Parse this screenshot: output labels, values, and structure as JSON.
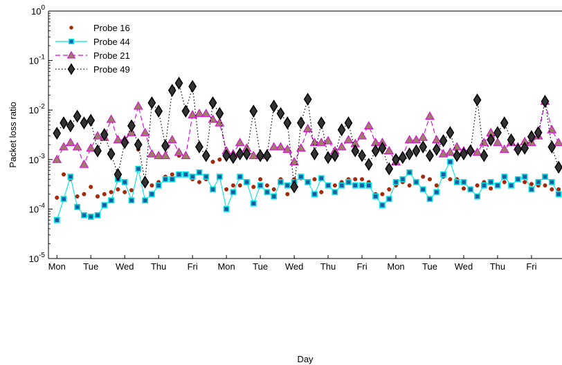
{
  "chart_data": {
    "type": "line",
    "title": "",
    "xlabel": "Day",
    "ylabel": "Packet loss ratio",
    "yscale": "log",
    "ylim": [
      1e-05,
      1
    ],
    "y_tick_labels": [
      "10^-5",
      "10^-4",
      "10^-3",
      "10^-2",
      "10^-1",
      "10^0"
    ],
    "xlim": [
      -0.25,
      14.9
    ],
    "x_tick_labels": [
      "Mon",
      "Tue",
      "Wed",
      "Thu",
      "Fri",
      "Mon",
      "Tue",
      "Wed",
      "Thu",
      "Fri",
      "Mon",
      "Tue",
      "Wed",
      "Thu",
      "Fri"
    ],
    "x_tick_positions": [
      0,
      1,
      2,
      3,
      4,
      5,
      6,
      7,
      8,
      9,
      10,
      11,
      12,
      13,
      14
    ],
    "grid": false,
    "legend_position": "top-left",
    "series": [
      {
        "name": "Probe 16",
        "color": "#a52a0a",
        "line_style": "none",
        "marker": "circle",
        "x": [
          0.0,
          0.2,
          0.4,
          0.6,
          0.8,
          1.0,
          1.2,
          1.4,
          1.6,
          1.8,
          2.0,
          2.2,
          2.4,
          2.6,
          2.8,
          3.0,
          3.2,
          3.4,
          3.6,
          3.8,
          4.0,
          4.2,
          4.4,
          4.6,
          4.8,
          5.0,
          5.2,
          5.4,
          5.6,
          5.8,
          6.0,
          6.2,
          6.4,
          6.6,
          6.8,
          7.0,
          7.2,
          7.4,
          7.6,
          7.8,
          8.0,
          8.2,
          8.4,
          8.6,
          8.8,
          9.0,
          9.2,
          9.4,
          9.6,
          9.8,
          10.0,
          10.2,
          10.4,
          10.6,
          10.8,
          11.0,
          11.2,
          11.4,
          11.6,
          11.8,
          12.0,
          12.2,
          12.4,
          12.6,
          12.8,
          13.0,
          13.2,
          13.4,
          13.6,
          13.8,
          14.0,
          14.2,
          14.4,
          14.6,
          14.8
        ],
        "y": [
          0.00017,
          0.0005,
          0.0004,
          0.00018,
          0.0002,
          0.00028,
          0.00018,
          0.0002,
          0.00022,
          0.00025,
          0.00022,
          0.00024,
          0.0016,
          0.00035,
          0.0003,
          0.00035,
          0.00045,
          0.0005,
          0.0012,
          0.0012,
          0.0004,
          0.00035,
          0.0004,
          0.0009,
          0.001,
          0.00025,
          0.0003,
          0.0003,
          0.00035,
          0.00028,
          0.0004,
          0.0003,
          0.00025,
          0.0004,
          0.0002,
          0.0004,
          0.00042,
          0.00035,
          0.0004,
          0.00022,
          0.0003,
          0.0003,
          0.00035,
          0.0004,
          0.0004,
          0.0004,
          0.00035,
          0.0002,
          0.0002,
          0.00025,
          0.0003,
          0.00035,
          0.0003,
          0.00035,
          0.00045,
          0.0004,
          0.0003,
          0.00045,
          0.0004,
          0.0004,
          0.00026,
          0.00025,
          0.0003,
          0.00035,
          0.00026,
          0.0003,
          0.00035,
          0.0003,
          0.0004,
          0.00035,
          0.00032,
          0.0003,
          0.0003,
          0.00025,
          0.00025
        ]
      },
      {
        "name": "Probe 44",
        "color": "#00e5e5",
        "line_style": "solid",
        "marker": "square",
        "x": [
          0.0,
          0.2,
          0.4,
          0.6,
          0.8,
          1.0,
          1.2,
          1.4,
          1.6,
          1.8,
          2.0,
          2.2,
          2.4,
          2.6,
          2.8,
          3.0,
          3.2,
          3.4,
          3.6,
          3.8,
          4.0,
          4.2,
          4.4,
          4.6,
          4.8,
          5.0,
          5.2,
          5.4,
          5.6,
          5.8,
          6.0,
          6.2,
          6.4,
          6.6,
          6.8,
          7.0,
          7.2,
          7.4,
          7.6,
          7.8,
          8.0,
          8.2,
          8.4,
          8.6,
          8.8,
          9.0,
          9.2,
          9.4,
          9.6,
          9.8,
          10.0,
          10.2,
          10.4,
          10.6,
          10.8,
          11.0,
          11.2,
          11.4,
          11.6,
          11.8,
          12.0,
          12.2,
          12.4,
          12.6,
          12.8,
          13.0,
          13.2,
          13.4,
          13.6,
          13.8,
          14.0,
          14.2,
          14.4,
          14.6,
          14.8
        ],
        "y": [
          6e-05,
          0.00016,
          0.00045,
          0.00011,
          7.5e-05,
          7e-05,
          7.5e-05,
          0.00012,
          0.00015,
          0.0004,
          0.00035,
          0.00015,
          0.00065,
          0.00015,
          0.0002,
          0.0003,
          0.0004,
          0.0004,
          0.0005,
          0.0005,
          0.00045,
          0.00055,
          0.00045,
          0.00025,
          0.00045,
          0.0001,
          0.00022,
          0.00045,
          0.00035,
          0.00013,
          0.0003,
          0.00022,
          0.00018,
          0.00035,
          0.0003,
          0.00035,
          0.00045,
          0.00035,
          0.0002,
          0.00042,
          0.0003,
          0.00022,
          0.0003,
          0.00035,
          0.0003,
          0.0003,
          0.0003,
          0.00018,
          0.00012,
          0.00016,
          0.00035,
          0.0004,
          0.00055,
          0.00035,
          0.00025,
          0.00016,
          0.00022,
          0.0005,
          0.0009,
          0.00035,
          0.00035,
          0.00025,
          0.00018,
          0.0003,
          0.00035,
          0.0003,
          0.00045,
          0.0003,
          0.0004,
          0.00045,
          0.00025,
          0.00035,
          0.00045,
          0.00035,
          0.0002
        ]
      },
      {
        "name": "Probe 21",
        "color": "#dd00dd",
        "line_style": "dashed",
        "marker": "triangle",
        "x": [
          0.0,
          0.2,
          0.4,
          0.6,
          0.8,
          1.0,
          1.2,
          1.4,
          1.6,
          1.8,
          2.0,
          2.2,
          2.4,
          2.6,
          2.8,
          3.0,
          3.2,
          3.4,
          3.6,
          3.8,
          4.0,
          4.2,
          4.4,
          4.6,
          4.8,
          5.0,
          5.2,
          5.4,
          5.6,
          5.8,
          6.0,
          6.2,
          6.4,
          6.6,
          6.8,
          7.0,
          7.2,
          7.4,
          7.6,
          7.8,
          8.0,
          8.2,
          8.4,
          8.6,
          8.8,
          9.0,
          9.2,
          9.4,
          9.6,
          9.8,
          10.0,
          10.2,
          10.4,
          10.6,
          10.8,
          11.0,
          11.2,
          11.4,
          11.6,
          11.8,
          12.0,
          12.2,
          12.4,
          12.6,
          12.8,
          13.0,
          13.2,
          13.4,
          13.6,
          13.8,
          14.0,
          14.2,
          14.4,
          14.6,
          14.8
        ],
        "y": [
          0.001,
          0.0018,
          0.0022,
          0.0018,
          0.0008,
          0.0017,
          0.003,
          0.0028,
          0.0065,
          0.0025,
          0.0025,
          0.0035,
          0.012,
          0.0035,
          0.0013,
          0.0012,
          0.0012,
          0.0025,
          0.0014,
          0.0012,
          0.008,
          0.0085,
          0.0085,
          0.0065,
          0.0055,
          0.0015,
          0.0013,
          0.0022,
          0.0017,
          0.0012,
          0.0012,
          0.0013,
          0.0018,
          0.0018,
          0.0016,
          0.0009,
          0.0017,
          0.0042,
          0.0022,
          0.0022,
          0.0024,
          0.0015,
          0.0018,
          0.0025,
          0.0021,
          0.003,
          0.0048,
          0.0022,
          0.0022,
          0.0015,
          0.0009,
          0.0012,
          0.0025,
          0.0025,
          0.0028,
          0.0075,
          0.0025,
          0.0013,
          0.0014,
          0.0018,
          0.0015,
          0.0016,
          0.0014,
          0.0022,
          0.0035,
          0.0022,
          0.0016,
          0.0022,
          0.0018,
          0.0023,
          0.0022,
          0.003,
          0.015,
          0.004,
          0.0022
        ]
      },
      {
        "name": "Probe 49",
        "color": "#000000",
        "line_style": "dotted",
        "marker": "diamond",
        "x": [
          0.0,
          0.2,
          0.4,
          0.6,
          0.8,
          1.0,
          1.2,
          1.4,
          1.6,
          1.8,
          2.0,
          2.2,
          2.4,
          2.6,
          2.8,
          3.0,
          3.2,
          3.4,
          3.6,
          3.8,
          4.0,
          4.2,
          4.4,
          4.6,
          4.8,
          5.0,
          5.2,
          5.4,
          5.6,
          5.8,
          6.0,
          6.2,
          6.4,
          6.6,
          6.8,
          7.0,
          7.2,
          7.4,
          7.6,
          7.8,
          8.0,
          8.2,
          8.4,
          8.6,
          8.8,
          9.0,
          9.2,
          9.4,
          9.6,
          9.8,
          10.0,
          10.2,
          10.4,
          10.6,
          10.8,
          11.0,
          11.2,
          11.4,
          11.6,
          11.8,
          12.0,
          12.2,
          12.4,
          12.6,
          12.8,
          13.0,
          13.2,
          13.4,
          13.6,
          13.8,
          14.0,
          14.2,
          14.4,
          14.6,
          14.8
        ],
        "y": [
          0.0034,
          0.0055,
          0.0048,
          0.0075,
          0.0055,
          0.0062,
          0.0015,
          0.0032,
          0.0013,
          0.0005,
          0.0022,
          0.0048,
          0.002,
          0.00035,
          0.014,
          0.0095,
          0.0019,
          0.025,
          0.035,
          0.0095,
          0.03,
          0.0018,
          0.0012,
          0.014,
          0.0085,
          0.0012,
          0.0011,
          0.0013,
          0.0013,
          0.0095,
          0.0012,
          0.0012,
          0.012,
          0.0085,
          0.0055,
          0.00028,
          0.0055,
          0.0165,
          0.0013,
          0.0055,
          0.0011,
          0.0012,
          0.004,
          0.0055,
          0.0015,
          0.0012,
          0.0008,
          0.0015,
          0.0017,
          0.00065,
          0.001,
          0.0011,
          0.0013,
          0.0015,
          0.0018,
          0.0012,
          0.0016,
          0.0024,
          0.0035,
          0.0012,
          0.0013,
          0.0015,
          0.016,
          0.0012,
          0.0025,
          0.0035,
          0.0055,
          0.0025,
          0.0016,
          0.0017,
          0.0029,
          0.0035,
          0.015,
          0.0018,
          0.0007
        ]
      }
    ]
  }
}
